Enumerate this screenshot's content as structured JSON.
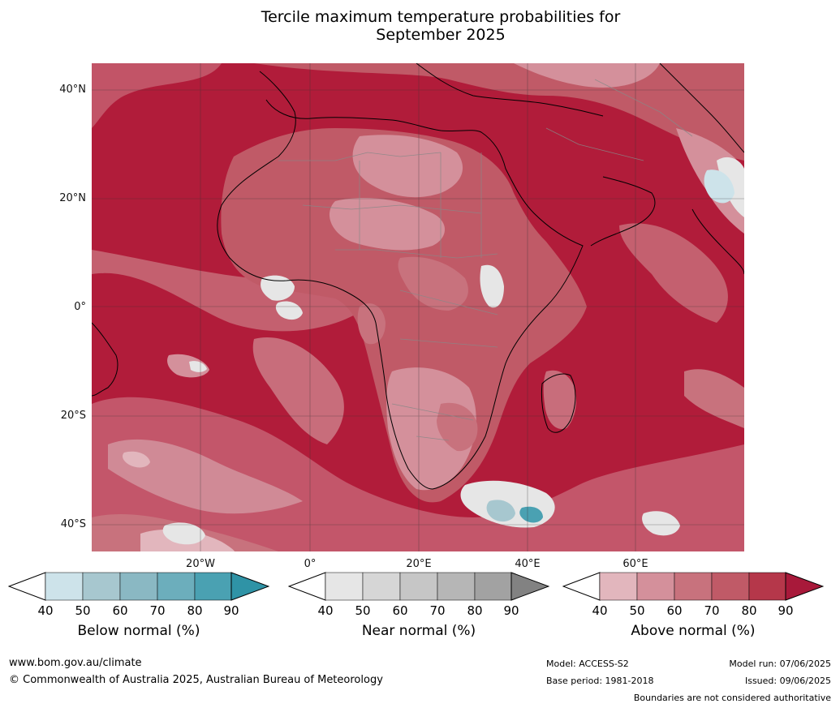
{
  "title_line1": "Tercile maximum temperature probabilities for",
  "title_line2": "September 2025",
  "lat_labels": [
    "40°N",
    "20°N",
    "0°",
    "20°S",
    "40°S"
  ],
  "lon_labels": [
    "20°W",
    "0°",
    "20°E",
    "40°E",
    "60°E"
  ],
  "colorbars": [
    {
      "title": "Below normal (%)",
      "ticks": [
        "40",
        "50",
        "60",
        "70",
        "80",
        "90"
      ],
      "colors": [
        "#ffffff",
        "#cde3ea",
        "#a7c7cf",
        "#8ab8c3",
        "#6caebc",
        "#4aa1b2",
        "#2f93a6"
      ]
    },
    {
      "title": "Near normal (%)",
      "ticks": [
        "40",
        "50",
        "60",
        "70",
        "80",
        "90"
      ],
      "colors": [
        "#ffffff",
        "#e6e6e6",
        "#d6d6d6",
        "#c6c6c6",
        "#b6b6b6",
        "#a2a2a2",
        "#828282"
      ]
    },
    {
      "title": "Above normal (%)",
      "ticks": [
        "40",
        "50",
        "60",
        "70",
        "80",
        "90"
      ],
      "colors": [
        "#ffffff",
        "#e2b6bd",
        "#d4909b",
        "#c8727d",
        "#c05a67",
        "#b5374a",
        "#a8193a"
      ]
    }
  ],
  "footer": {
    "url": "www.bom.gov.au/climate",
    "copyright": "© Commonwealth of Australia 2025, Australian Bureau of Meteorology",
    "model": "Model: ACCESS-S2",
    "base_period": "Base period: 1981-2018",
    "model_run": "Model run: 07/06/2025",
    "issued": "Issued: 09/06/2025",
    "disclaimer": "Boundaries are not considered authoritative"
  }
}
